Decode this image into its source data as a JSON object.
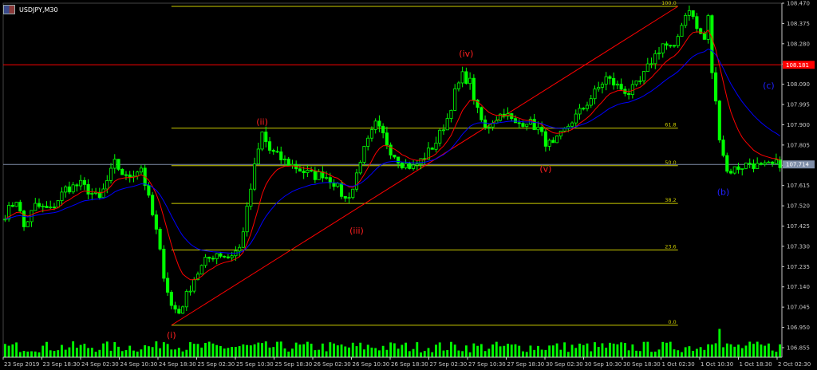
{
  "chart_title": "USDJPY,M30",
  "colors": {
    "background": "#000000",
    "candle": "#00ff00",
    "ma_fast": "#ff0000",
    "ma_slow": "#0000ff",
    "fib": "#cccc00",
    "trendline": "#ff0000",
    "hline": "#ff0000",
    "current": "#7f8ea8",
    "axis": "#c8c8c8",
    "wave_red": "#ff2020",
    "wave_blue": "#2020ff"
  },
  "chart_data": {
    "type": "candlestick",
    "symbol": "USDJPY",
    "timeframe": "M30",
    "ylim": [
      106.81,
      108.47
    ],
    "y_ticks": [
      "108.470",
      "108.375",
      "108.280",
      "108.185",
      "108.090",
      "107.995",
      "107.900",
      "107.805",
      "107.710",
      "107.615",
      "107.520",
      "107.425",
      "107.330",
      "107.235",
      "107.140",
      "107.045",
      "106.950",
      "106.855"
    ],
    "x_ticks": [
      "23 Sep 2019",
      "23 Sep 18:30",
      "24 Sep 02:30",
      "24 Sep 10:30",
      "24 Sep 18:30",
      "25 Sep 02:30",
      "25 Sep 10:30",
      "25 Sep 18:30",
      "26 Sep 02:30",
      "26 Sep 10:30",
      "26 Sep 18:30",
      "27 Sep 02:30",
      "27 Sep 10:30",
      "27 Sep 18:30",
      "30 Sep 02:30",
      "30 Sep 10:30",
      "30 Sep 18:30",
      "1 Oct 02:30",
      "1 Oct 10:30",
      "1 Oct 18:30",
      "2 Oct 02:30"
    ],
    "price_path": [
      [
        0,
        107.48
      ],
      [
        3,
        107.55
      ],
      [
        5,
        107.42
      ],
      [
        8,
        107.52
      ],
      [
        12,
        107.5
      ],
      [
        16,
        107.6
      ],
      [
        20,
        107.62
      ],
      [
        25,
        107.55
      ],
      [
        29,
        107.72
      ],
      [
        32,
        107.65
      ],
      [
        36,
        107.7
      ],
      [
        38,
        107.55
      ],
      [
        40,
        107.4
      ],
      [
        42,
        107.2
      ],
      [
        44,
        107.05
      ],
      [
        46,
        107.02
      ],
      [
        48,
        107.1
      ],
      [
        50,
        107.18
      ],
      [
        53,
        107.26
      ],
      [
        56,
        107.3
      ],
      [
        59,
        107.28
      ],
      [
        62,
        107.32
      ],
      [
        64,
        107.5
      ],
      [
        66,
        107.7
      ],
      [
        68,
        107.86
      ],
      [
        70,
        107.78
      ],
      [
        73,
        107.74
      ],
      [
        76,
        107.71
      ],
      [
        79,
        107.68
      ],
      [
        82,
        107.66
      ],
      [
        84,
        107.67
      ],
      [
        87,
        107.63
      ],
      [
        90,
        107.55
      ],
      [
        92,
        107.6
      ],
      [
        94,
        107.74
      ],
      [
        96,
        107.82
      ],
      [
        98,
        107.9
      ],
      [
        100,
        107.85
      ],
      [
        102,
        107.78
      ],
      [
        105,
        107.72
      ],
      [
        108,
        107.7
      ],
      [
        111,
        107.75
      ],
      [
        114,
        107.82
      ],
      [
        117,
        107.93
      ],
      [
        119,
        108.05
      ],
      [
        121,
        108.13
      ],
      [
        123,
        108.1
      ],
      [
        125,
        107.96
      ],
      [
        127,
        107.88
      ],
      [
        129,
        107.92
      ],
      [
        132,
        107.96
      ],
      [
        135,
        107.9
      ],
      [
        138,
        107.92
      ],
      [
        141,
        107.88
      ],
      [
        143,
        107.82
      ],
      [
        145,
        107.8
      ],
      [
        147,
        107.85
      ],
      [
        150,
        107.92
      ],
      [
        153,
        107.98
      ],
      [
        156,
        108.05
      ],
      [
        159,
        108.12
      ],
      [
        162,
        108.08
      ],
      [
        165,
        108.05
      ],
      [
        168,
        108.1
      ],
      [
        171,
        108.2
      ],
      [
        174,
        108.28
      ],
      [
        177,
        108.25
      ],
      [
        179,
        108.38
      ],
      [
        181,
        108.45
      ],
      [
        183,
        108.35
      ],
      [
        185,
        108.3
      ],
      [
        186,
        108.4
      ],
      [
        187,
        108.15
      ],
      [
        189,
        107.85
      ],
      [
        191,
        107.68
      ],
      [
        194,
        107.7
      ],
      [
        197,
        107.72
      ],
      [
        200,
        107.7
      ],
      [
        203,
        107.71
      ],
      [
        205,
        107.72
      ]
    ],
    "bar_count": 206,
    "current_price": "107.714",
    "hline_price": "108.181",
    "fibonacci": {
      "high": 108.455,
      "low": 106.96,
      "levels": [
        {
          "label": "100.0",
          "price": 108.455
        },
        {
          "label": "61.8",
          "price": 107.884
        },
        {
          "label": "50.0",
          "price": 107.708
        },
        {
          "label": "38.2",
          "price": 107.531
        },
        {
          "label": "23.6",
          "price": 107.313
        },
        {
          "label": "0.0",
          "price": 106.96
        }
      ]
    },
    "trendline": {
      "from_price": 106.96,
      "to_price": 108.455
    },
    "wave_labels": [
      {
        "text": "(i)",
        "price": 106.9,
        "color_key": "wave_red"
      },
      {
        "text": "(ii)",
        "price": 107.9,
        "color_key": "wave_red"
      },
      {
        "text": "(iii)",
        "price": 107.39,
        "color_key": "wave_red"
      },
      {
        "text": "(iv)",
        "price": 108.22,
        "color_key": "wave_red"
      },
      {
        "text": "(v)",
        "price": 107.68,
        "color_key": "wave_red"
      },
      {
        "text": "(b)",
        "price": 107.57,
        "color_key": "wave_blue"
      },
      {
        "text": "(c)",
        "price": 108.07,
        "color_key": "wave_blue"
      }
    ]
  }
}
